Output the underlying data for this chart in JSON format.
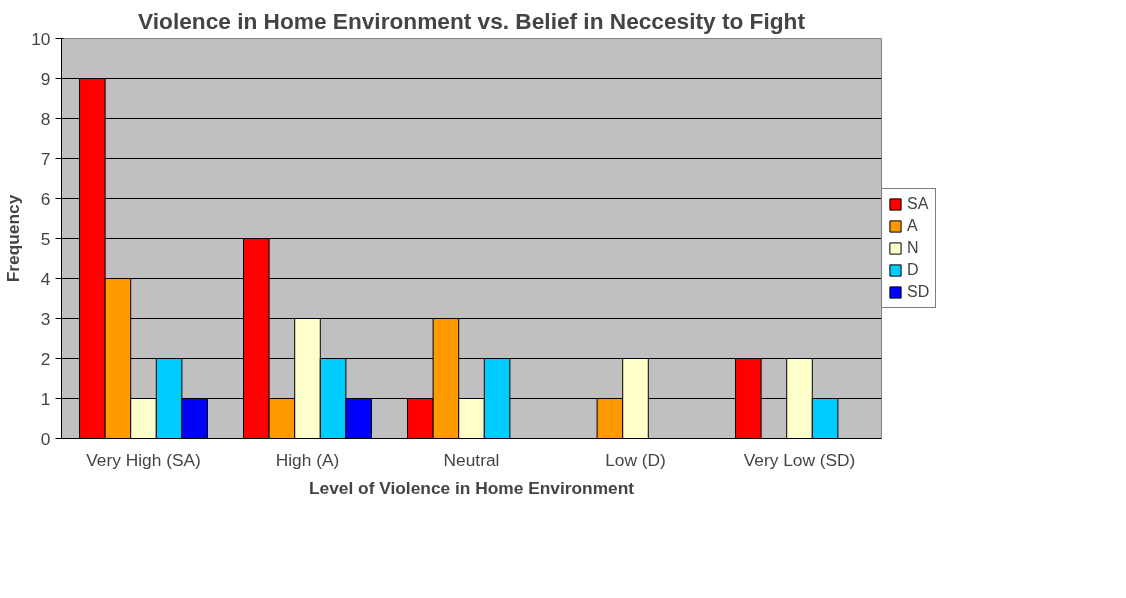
{
  "chart_data": {
    "type": "bar",
    "title": "Violence in Home Environment vs. Belief in Neccesity to Fight",
    "xlabel": "Level of Violence in Home Environment",
    "ylabel": "Frequency",
    "categories": [
      "Very High (SA)",
      "High (A)",
      "Neutral",
      "Low (D)",
      "Very Low (SD)"
    ],
    "series": [
      {
        "name": "SA",
        "color": "#ff0000",
        "values": [
          9,
          5,
          1,
          null,
          2
        ]
      },
      {
        "name": "A",
        "color": "#ff9900",
        "values": [
          4,
          1,
          3,
          1,
          null
        ]
      },
      {
        "name": "N",
        "color": "#ffffcc",
        "values": [
          1,
          3,
          1,
          2,
          2
        ]
      },
      {
        "name": "D",
        "color": "#00ccff",
        "values": [
          2,
          2,
          2,
          null,
          1
        ]
      },
      {
        "name": "SD",
        "color": "#0000ff",
        "values": [
          1,
          1,
          null,
          null,
          null
        ]
      }
    ],
    "ylim": [
      0,
      10
    ],
    "yticks": [
      0,
      1,
      2,
      3,
      4,
      5,
      6,
      7,
      8,
      9,
      10
    ],
    "grid": "y",
    "legend": "right"
  }
}
